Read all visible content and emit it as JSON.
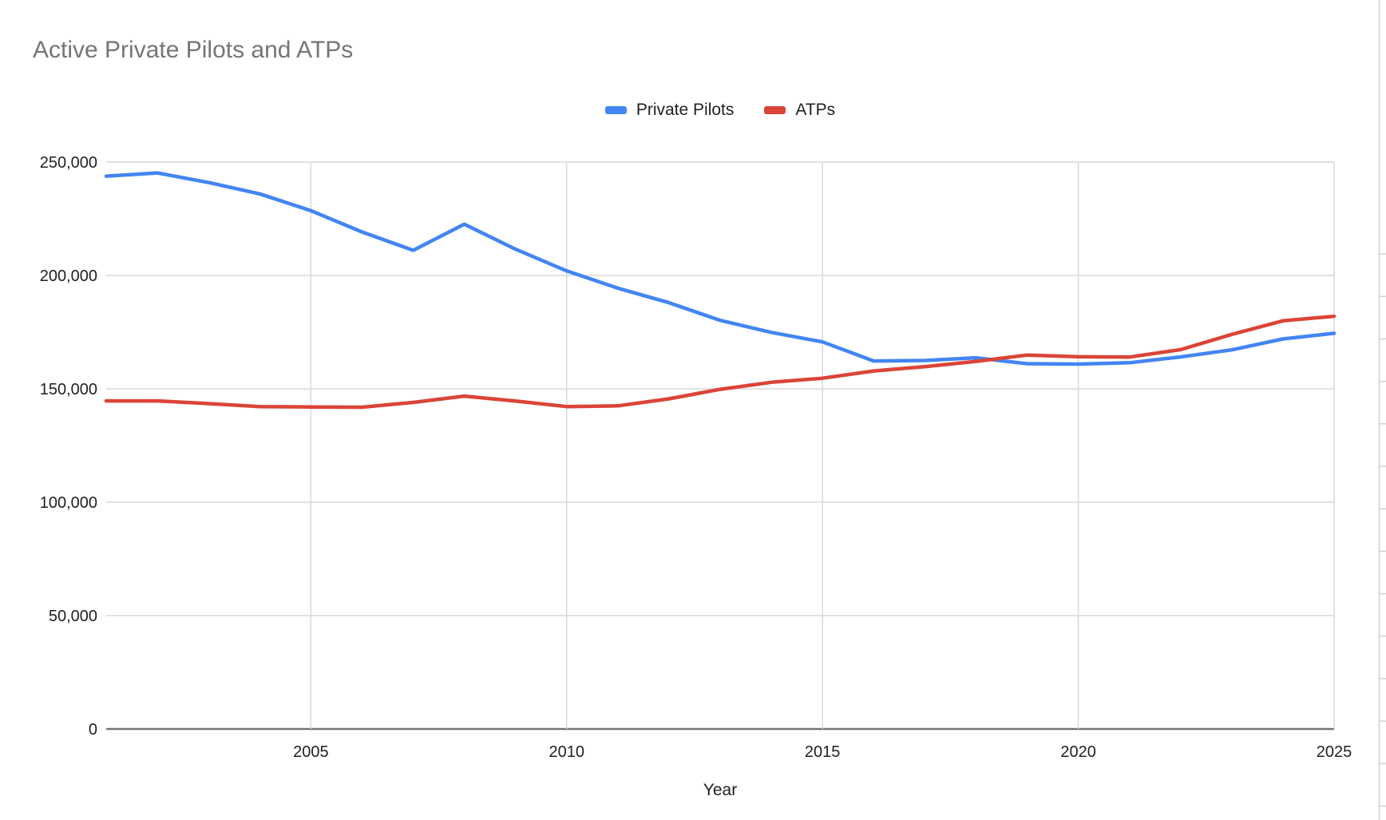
{
  "chart": {
    "legend_items": [
      "Private Pilots",
      "ATPs"
    ]
  },
  "colors": {
    "private_pilots": "#4285f4",
    "atps": "#db4437",
    "gridline": "#d9d9d9",
    "axis_line": "#757575",
    "title_text": "#757575",
    "tick_text": "#202124",
    "sheet_border": "#d2d2d2"
  },
  "chart_data": {
    "type": "line",
    "title": "Active Private Pilots and ATPs",
    "xlabel": "Year",
    "ylabel": "",
    "x": [
      2001,
      2002,
      2003,
      2004,
      2005,
      2006,
      2007,
      2008,
      2009,
      2010,
      2011,
      2012,
      2013,
      2014,
      2015,
      2016,
      2017,
      2018,
      2019,
      2020,
      2021,
      2022,
      2023,
      2024,
      2025
    ],
    "series": [
      {
        "name": "Private Pilots",
        "color": "#4285f4",
        "values": [
          243800,
          245200,
          241000,
          236000,
          228600,
          219200,
          211100,
          222600,
          211600,
          202000,
          194400,
          188000,
          180200,
          174900,
          170700,
          162300,
          162500,
          163700,
          161100,
          160900,
          161500,
          164100,
          167200,
          172000,
          174500
        ]
      },
      {
        "name": "ATPs",
        "color": "#db4437",
        "values": [
          144700,
          144700,
          143500,
          142200,
          142000,
          141900,
          144000,
          146800,
          144600,
          142200,
          142500,
          145600,
          149800,
          152900,
          154700,
          157900,
          159800,
          162100,
          164900,
          164200,
          164000,
          167300,
          174000,
          180000,
          182000
        ]
      }
    ],
    "xlim": [
      2001,
      2025
    ],
    "ylim": [
      0,
      250000
    ],
    "x_ticks": [
      2005,
      2010,
      2015,
      2020,
      2025
    ],
    "y_ticks": [
      0,
      50000,
      100000,
      150000,
      200000,
      250000
    ],
    "grid": true,
    "legend_position": "top-center"
  }
}
